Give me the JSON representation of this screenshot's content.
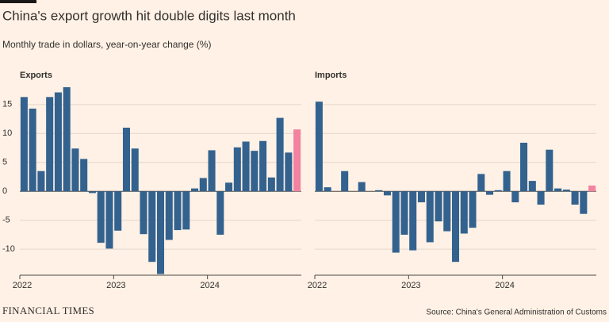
{
  "title": "China's export growth hit double digits last month",
  "subtitle": "Monthly trade in dollars, year-on-year change (%)",
  "brand": "FINANCIAL TIMES",
  "source": "Source: China's General Administration of Customs",
  "chart_data": [
    {
      "type": "bar",
      "title": "Exports",
      "categories": [
        "2022",
        null,
        null,
        null,
        null,
        null,
        null,
        null,
        null,
        null,
        null,
        "2023",
        null,
        null,
        null,
        null,
        null,
        null,
        null,
        null,
        null,
        null,
        "2024",
        null,
        null,
        null,
        null,
        null,
        null,
        null,
        null,
        null,
        null
      ],
      "values": [
        16.3,
        14.3,
        3.5,
        16.3,
        17.1,
        18.0,
        7.4,
        5.6,
        -0.3,
        -8.9,
        -9.9,
        -6.8,
        11.0,
        7.4,
        -7.4,
        -12.2,
        -14.3,
        -8.4,
        -6.7,
        -6.6,
        0.5,
        2.3,
        7.1,
        -7.5,
        1.5,
        7.6,
        8.6,
        7.0,
        8.7,
        2.4,
        12.7,
        6.7,
        10.7
      ],
      "color": "#33628f",
      "highlight_color": "#f2829f",
      "ylim": [
        -14.5,
        19.5
      ],
      "yticks": [
        -10,
        -5,
        0,
        5,
        10,
        15
      ],
      "grid": true,
      "show_yticks": true
    },
    {
      "type": "bar",
      "title": "Imports",
      "categories": [
        "2022",
        null,
        null,
        null,
        null,
        null,
        null,
        null,
        null,
        null,
        null,
        "2023",
        null,
        null,
        null,
        null,
        null,
        null,
        null,
        null,
        null,
        null,
        "2024",
        null,
        null,
        null,
        null,
        null,
        null,
        null,
        null,
        null,
        null
      ],
      "values": [
        15.5,
        0.7,
        0,
        3.5,
        0,
        1.6,
        0,
        0.2,
        -0.7,
        -10.6,
        -7.5,
        -10.2,
        -1.9,
        -8.8,
        -5.2,
        -6.9,
        -12.2,
        -7.3,
        -6.3,
        3.0,
        -0.6,
        0.2,
        3.5,
        -1.9,
        8.4,
        1.8,
        -2.3,
        7.2,
        0.5,
        0.3,
        -2.3,
        -3.9,
        1.0
      ],
      "color": "#33628f",
      "highlight_color": "#f2829f",
      "ylim": [
        -14.5,
        19.5
      ],
      "yticks": [
        -10,
        -5,
        0,
        5,
        10,
        15
      ],
      "grid": true,
      "show_yticks": false
    }
  ]
}
